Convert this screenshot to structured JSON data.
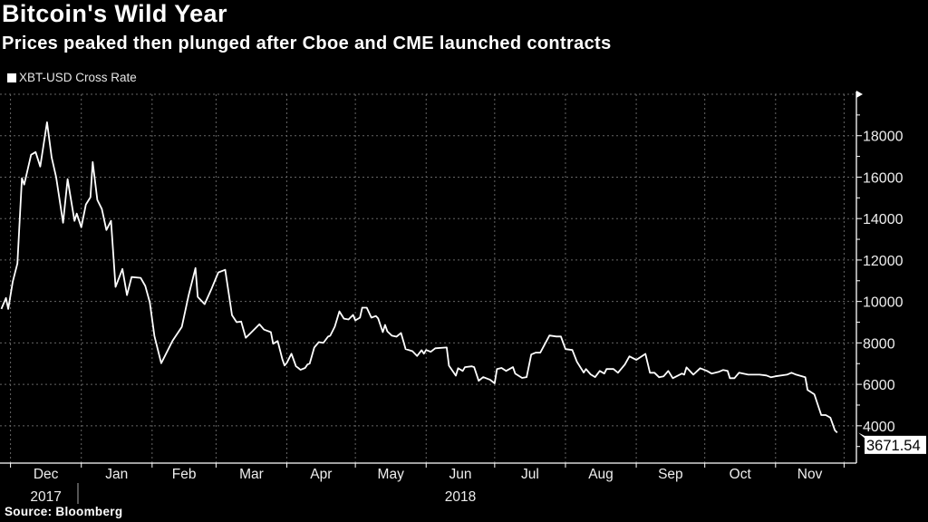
{
  "chart_data": {
    "type": "line",
    "title": "Bitcoin's Wild Year",
    "subtitle": "Prices peaked then plunged after Cboe and CME launched contracts",
    "source": "Source: Bloomberg",
    "legend": [
      {
        "name": "XBT-USD Cross Rate",
        "color": "#ffffff"
      }
    ],
    "legend_placement": "top-left",
    "y_axis_side": "right",
    "xlim": [
      "2017-11-26",
      "2018-12-06"
    ],
    "ylim": [
      2200,
      20000
    ],
    "grid": true,
    "y_ticks": [
      4000,
      6000,
      8000,
      10000,
      12000,
      14000,
      16000,
      18000
    ],
    "y_tick_labels": [
      "4000",
      "6000",
      "8000",
      "10000",
      "12000",
      "14000",
      "16000",
      "18000"
    ],
    "x_tick_labels": [
      "Dec",
      "Jan",
      "Feb",
      "Mar",
      "Apr",
      "May",
      "Jun",
      "Jul",
      "Aug",
      "Sep",
      "Oct",
      "Nov"
    ],
    "x_year_labels": [
      {
        "label": "2017",
        "month": "Dec"
      },
      {
        "label": "2018",
        "month": "Jun"
      }
    ],
    "last_value_label": "3671.54",
    "colors": {
      "background": "#000000",
      "line": "#ffffff",
      "grid": "#666666",
      "axis": "#ffffff"
    },
    "series": [
      {
        "name": "XBT-USD Cross Rate",
        "x": [
          "2017-11-27",
          "2017-11-29",
          "2017-11-30",
          "2017-12-02",
          "2017-12-04",
          "2017-12-06",
          "2017-12-07",
          "2017-12-10",
          "2017-12-12",
          "2017-12-14",
          "2017-12-17",
          "2017-12-19",
          "2017-12-21",
          "2017-12-24",
          "2017-12-26",
          "2017-12-29",
          "2017-12-30",
          "2018-01-01",
          "2018-01-03",
          "2018-01-05",
          "2018-01-06",
          "2018-01-08",
          "2018-01-10",
          "2018-01-12",
          "2018-01-14",
          "2018-01-16",
          "2018-01-19",
          "2018-01-21",
          "2018-01-23",
          "2018-01-27",
          "2018-01-29",
          "2018-01-31",
          "2018-02-02",
          "2018-02-05",
          "2018-02-10",
          "2018-02-14",
          "2018-02-17",
          "2018-02-20",
          "2018-02-21",
          "2018-02-24",
          "2018-02-27",
          "2018-03-02",
          "2018-03-05",
          "2018-03-08",
          "2018-03-10",
          "2018-03-12",
          "2018-03-14",
          "2018-03-16",
          "2018-03-20",
          "2018-03-22",
          "2018-03-25",
          "2018-03-26",
          "2018-03-28",
          "2018-03-30",
          "2018-03-31",
          "2018-04-01",
          "2018-04-03",
          "2018-04-05",
          "2018-04-06",
          "2018-04-07",
          "2018-04-09",
          "2018-04-10",
          "2018-04-11",
          "2018-04-13",
          "2018-04-15",
          "2018-04-17",
          "2018-04-19",
          "2018-04-20",
          "2018-04-22",
          "2018-04-24",
          "2018-04-26",
          "2018-04-28",
          "2018-04-30",
          "2018-05-01",
          "2018-05-03",
          "2018-05-04",
          "2018-05-06",
          "2018-05-08",
          "2018-05-10",
          "2018-05-11",
          "2018-05-13",
          "2018-05-14",
          "2018-05-15",
          "2018-05-17",
          "2018-05-19",
          "2018-05-21",
          "2018-05-23",
          "2018-05-26",
          "2018-05-28",
          "2018-05-30",
          "2018-05-31",
          "2018-06-01",
          "2018-06-03",
          "2018-06-05",
          "2018-06-10",
          "2018-06-11",
          "2018-06-14",
          "2018-06-15",
          "2018-06-17",
          "2018-06-18",
          "2018-06-21",
          "2018-06-22",
          "2018-06-24",
          "2018-06-26",
          "2018-06-29",
          "2018-07-01",
          "2018-07-02",
          "2018-07-04",
          "2018-07-06",
          "2018-07-09",
          "2018-07-10",
          "2018-07-13",
          "2018-07-15",
          "2018-07-17",
          "2018-07-19",
          "2018-07-21",
          "2018-07-25",
          "2018-07-28",
          "2018-07-30",
          "2018-08-01",
          "2018-08-04",
          "2018-08-06",
          "2018-08-09",
          "2018-08-10",
          "2018-08-12",
          "2018-08-14",
          "2018-08-16",
          "2018-08-18",
          "2018-08-19",
          "2018-08-22",
          "2018-08-24",
          "2018-08-27",
          "2018-08-29",
          "2018-09-01",
          "2018-09-05",
          "2018-09-07",
          "2018-09-09",
          "2018-09-11",
          "2018-09-13",
          "2018-09-15",
          "2018-09-17",
          "2018-09-21",
          "2018-09-22",
          "2018-09-23",
          "2018-09-26",
          "2018-09-29",
          "2018-10-02",
          "2018-10-04",
          "2018-10-07",
          "2018-10-09",
          "2018-10-11",
          "2018-10-12",
          "2018-10-14",
          "2018-10-16",
          "2018-10-20",
          "2018-10-25",
          "2018-10-28",
          "2018-10-30",
          "2018-11-01",
          "2018-11-06",
          "2018-11-08",
          "2018-11-10",
          "2018-11-14",
          "2018-11-15",
          "2018-11-18",
          "2018-11-21",
          "2018-11-23",
          "2018-11-25",
          "2018-11-27",
          "2018-11-28"
        ],
        "y": [
          9640,
          10170,
          9640,
          10960,
          11830,
          15950,
          15640,
          17080,
          17210,
          16510,
          18650,
          16950,
          15990,
          13800,
          15900,
          13890,
          14240,
          13580,
          14680,
          15030,
          16730,
          14900,
          14460,
          13450,
          13890,
          10700,
          11570,
          10310,
          11180,
          11140,
          10750,
          9960,
          8330,
          7020,
          8110,
          8770,
          10310,
          11610,
          10220,
          9870,
          10610,
          11400,
          11530,
          9340,
          9000,
          9030,
          8250,
          8460,
          8900,
          8640,
          8520,
          7960,
          8090,
          7220,
          6910,
          7040,
          7480,
          6870,
          6790,
          6700,
          6790,
          6960,
          7000,
          7780,
          8040,
          8000,
          8300,
          8350,
          8780,
          9520,
          9170,
          9130,
          9350,
          9090,
          9220,
          9700,
          9700,
          9220,
          9300,
          9180,
          8520,
          8870,
          8560,
          8350,
          8300,
          8480,
          7700,
          7600,
          7370,
          7650,
          7480,
          7660,
          7570,
          7740,
          7780,
          6900,
          6420,
          6780,
          6650,
          6830,
          6870,
          6830,
          6170,
          6350,
          6220,
          6050,
          6740,
          6790,
          6650,
          6830,
          6520,
          6310,
          6350,
          7440,
          7530,
          7530,
          8360,
          8310,
          8310,
          7700,
          7660,
          7090,
          6570,
          6740,
          6480,
          6350,
          6650,
          6520,
          6740,
          6740,
          6560,
          6960,
          7350,
          7180,
          7470,
          6560,
          6560,
          6340,
          6390,
          6650,
          6300,
          6520,
          6470,
          6820,
          6470,
          6780,
          6650,
          6520,
          6600,
          6690,
          6650,
          6300,
          6300,
          6560,
          6470,
          6470,
          6430,
          6340,
          6390,
          6470,
          6560,
          6470,
          6340,
          5730,
          5520,
          4520,
          4520,
          4390,
          3780,
          3671.54
        ]
      }
    ]
  }
}
